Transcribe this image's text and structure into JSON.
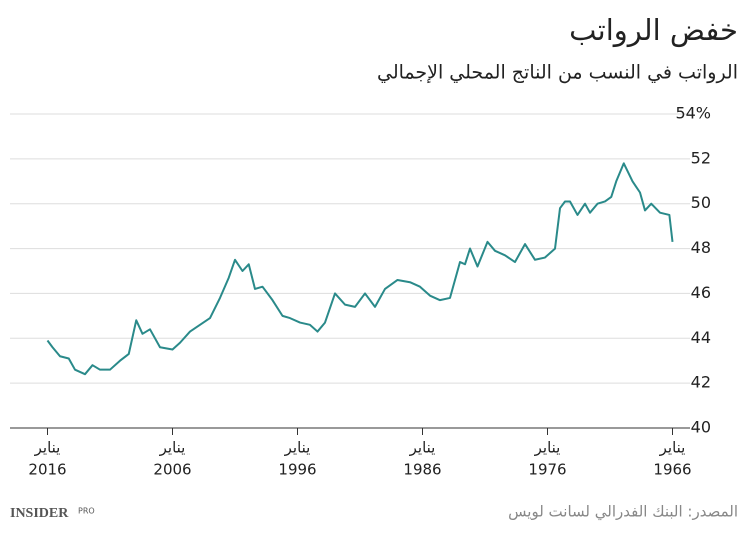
{
  "chart_data": {
    "type": "line",
    "title": "خفض الرواتب",
    "subtitle": "الرواتب في النسب من الناتج المحلي الإجمالي",
    "source": "المصدر: البنك الفدرالي لسانت لويس",
    "logo": "INSIDER",
    "logo_sub": "PRO",
    "xtick_prefix": "يناير",
    "x": [
      1966.0,
      1966.25,
      1967.0,
      1967.7,
      1968.2,
      1968.6,
      1969.2,
      1969.9,
      1970.5,
      1970.9,
      1971.4,
      1972.0,
      1972.6,
      1973.0,
      1973.6,
      1974.2,
      1974.6,
      1975.0,
      1975.4,
      1976.2,
      1977.0,
      1977.8,
      1978.6,
      1979.4,
      1980.2,
      1980.8,
      1981.6,
      1982.2,
      1982.6,
      1983.0,
      1983.8,
      1984.6,
      1985.4,
      1986.2,
      1987.0,
      1988.0,
      1989.0,
      1989.8,
      1990.6,
      1991.4,
      1992.2,
      1993.0,
      1993.8,
      1994.4,
      1995.0,
      1995.8,
      1996.6,
      1997.2,
      1998.0,
      1998.8,
      1999.4,
      1999.9,
      2000.4,
      2001.0,
      2001.5,
      2002.2,
      2003.0,
      2003.8,
      2004.6,
      2005.4,
      2006.0,
      2007.0,
      2007.8,
      2008.4,
      2008.9,
      2009.5,
      2010.2,
      2011.0,
      2011.8,
      2012.4,
      2013.0,
      2013.8,
      2014.3,
      2015.0,
      2015.6,
      2016.0
    ],
    "series": [
      {
        "name": "الرواتب",
        "color": "#2a8a8a",
        "values": [
          48.3,
          49.5,
          49.6,
          50.0,
          49.7,
          50.5,
          51.0,
          51.8,
          51.0,
          50.3,
          50.1,
          50.0,
          49.6,
          50.0,
          49.5,
          50.1,
          50.1,
          49.8,
          48.0,
          47.6,
          47.5,
          48.2,
          47.4,
          47.7,
          47.9,
          48.3,
          47.2,
          48.0,
          47.3,
          47.4,
          45.8,
          45.7,
          45.9,
          46.3,
          46.5,
          46.6,
          46.2,
          45.4,
          46.0,
          45.4,
          45.5,
          46.0,
          44.7,
          44.3,
          44.6,
          44.7,
          44.9,
          45.0,
          45.7,
          46.3,
          46.2,
          47.3,
          47.0,
          47.5,
          46.7,
          45.8,
          44.9,
          44.6,
          44.3,
          43.8,
          43.5,
          43.6,
          44.4,
          44.2,
          44.8,
          43.3,
          43.0,
          42.6,
          42.6,
          42.8,
          42.4,
          42.6,
          43.1,
          43.2,
          43.6,
          43.9
        ]
      }
    ],
    "xlim": [
      2019,
      1964.6
    ],
    "xticks": [
      2016,
      2006,
      1996,
      1986,
      1976,
      1966
    ],
    "ylim": [
      40,
      54
    ],
    "yticks": [
      40,
      42,
      44,
      46,
      48,
      50,
      52,
      {
        "value": 54,
        "label": "54%"
      }
    ],
    "grid": true
  }
}
